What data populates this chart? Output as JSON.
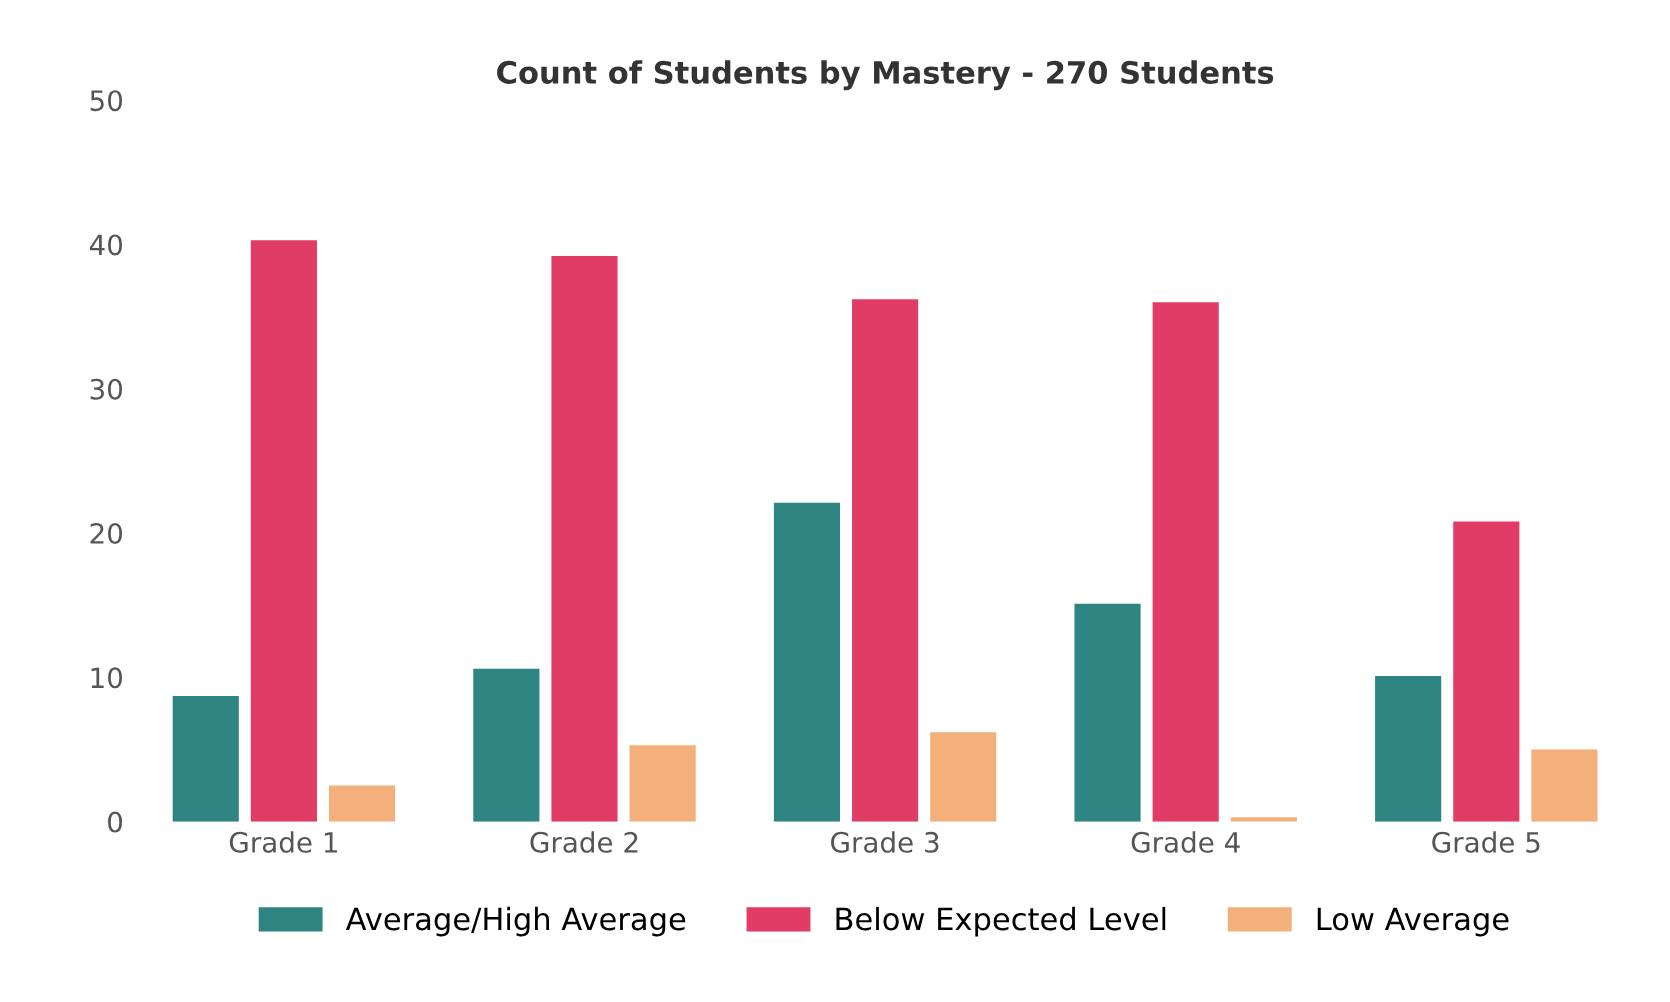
{
  "chart_data": {
    "type": "bar",
    "title": "Count of Students by Mastery - 270 Students",
    "categories": [
      "Grade 1",
      "Grade 2",
      "Grade 3",
      "Grade 4",
      "Grade 5"
    ],
    "series": [
      {
        "name": "Average/High Average",
        "color": "#2e8582",
        "values": [
          8.7,
          10.6,
          22.1,
          15.1,
          10.1
        ]
      },
      {
        "name": "Below Expected Level",
        "color": "#e03c66",
        "values": [
          40.3,
          39.2,
          36.2,
          36.0,
          20.8
        ]
      },
      {
        "name": "Low Average",
        "color": "#f4b07c",
        "values": [
          2.5,
          5.3,
          6.2,
          0.3,
          5.0
        ]
      }
    ],
    "ylim": [
      0,
      50
    ],
    "yticks": [
      0,
      10,
      20,
      30,
      40,
      50
    ],
    "grid": false,
    "legend": "bottom"
  }
}
